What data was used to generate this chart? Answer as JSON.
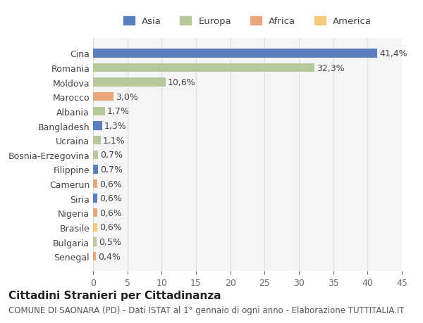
{
  "categories": [
    "Senegal",
    "Bulgaria",
    "Brasile",
    "Nigeria",
    "Siria",
    "Camerun",
    "Filippine",
    "Bosnia-Erzegovina",
    "Ucraina",
    "Bangladesh",
    "Albania",
    "Marocco",
    "Moldova",
    "Romania",
    "Cina"
  ],
  "values": [
    0.4,
    0.5,
    0.6,
    0.6,
    0.6,
    0.6,
    0.7,
    0.7,
    1.1,
    1.3,
    1.7,
    3.0,
    10.6,
    32.3,
    41.4
  ],
  "labels": [
    "0,4%",
    "0,5%",
    "0,6%",
    "0,6%",
    "0,6%",
    "0,6%",
    "0,7%",
    "0,7%",
    "1,1%",
    "1,3%",
    "1,7%",
    "3,0%",
    "10,6%",
    "32,3%",
    "41,4%"
  ],
  "colors": [
    "#e8a87c",
    "#b5c99a",
    "#f5c97a",
    "#e8a87c",
    "#5b7fbe",
    "#e8a87c",
    "#5b7fbe",
    "#b5c99a",
    "#b5c99a",
    "#5b7fbe",
    "#b5c99a",
    "#e8a87c",
    "#b5c99a",
    "#b5c99a",
    "#5b7fbe"
  ],
  "legend": [
    {
      "label": "Asia",
      "color": "#5b7fbe"
    },
    {
      "label": "Europa",
      "color": "#b5c99a"
    },
    {
      "label": "Africa",
      "color": "#e8a87c"
    },
    {
      "label": "America",
      "color": "#f5c97a"
    }
  ],
  "title": "Cittadini Stranieri per Cittadinanza",
  "subtitle": "COMUNE DI SAONARA (PD) - Dati ISTAT al 1° gennaio di ogni anno - Elaborazione TUTTITALIA.IT",
  "xlim": [
    0,
    45
  ],
  "xticks": [
    0,
    5,
    10,
    15,
    20,
    25,
    30,
    35,
    40,
    45
  ],
  "bg_color": "#ffffff",
  "plot_bg_color": "#f5f5f5",
  "grid_color": "#e0e0e0",
  "bar_height": 0.6,
  "label_fontsize": 9,
  "tick_fontsize": 9,
  "title_fontsize": 11,
  "subtitle_fontsize": 8.5
}
